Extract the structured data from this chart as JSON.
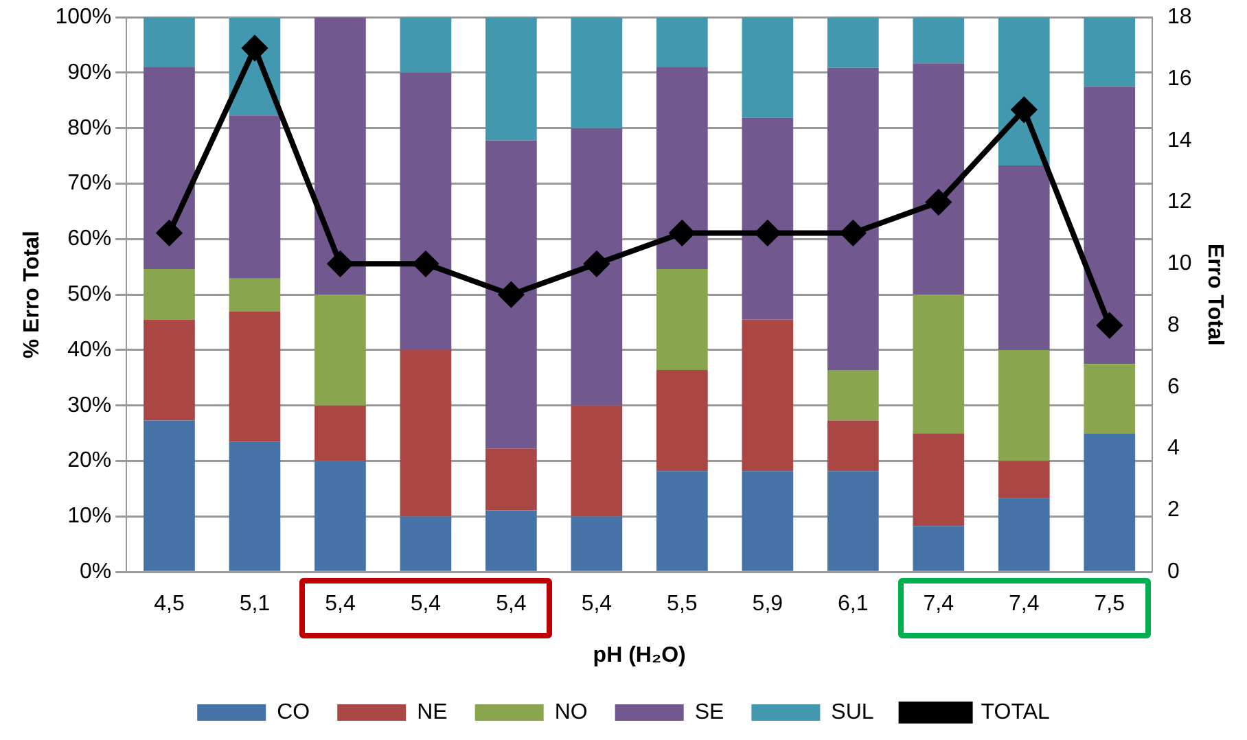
{
  "chart_data": {
    "type": "bar",
    "stacked": true,
    "xlabel": "pH (H₂O)",
    "ylabel": "% Erro Total",
    "y2label": "Erro Total",
    "categories": [
      "4,5",
      "5,1",
      "5,4",
      "5,4",
      "5,4",
      "5,4",
      "5,5",
      "5,9",
      "6,1",
      "7,4",
      "7,4",
      "7,5"
    ],
    "series": [
      {
        "name": "CO",
        "color": "#4572a7",
        "values": [
          27.3,
          23.5,
          20,
          10,
          11.1,
          10,
          18.2,
          18.2,
          18.2,
          8.3,
          13.3,
          25
        ]
      },
      {
        "name": "NE",
        "color": "#aa4643",
        "values": [
          18.2,
          23.5,
          10,
          30,
          11.1,
          20,
          18.2,
          27.3,
          9.1,
          16.7,
          6.7,
          0
        ]
      },
      {
        "name": "NO",
        "color": "#89a54e",
        "values": [
          9.1,
          5.9,
          20,
          0,
          0,
          0,
          18.2,
          0,
          9.1,
          25,
          20,
          12.5
        ]
      },
      {
        "name": "SE",
        "color": "#71588f",
        "values": [
          36.4,
          29.4,
          50,
          50,
          55.6,
          50,
          36.4,
          36.4,
          54.5,
          41.7,
          33.3,
          50
        ]
      },
      {
        "name": "SUL",
        "color": "#4198af",
        "values": [
          9.1,
          17.6,
          0,
          10,
          22.2,
          20,
          9.1,
          18.2,
          9.1,
          8.3,
          26.7,
          12.5
        ]
      },
      {
        "name": "TOTAL",
        "type": "line",
        "axis": "y2",
        "color": "#000000",
        "values": [
          11,
          17,
          10,
          10,
          9,
          10,
          11,
          11,
          11,
          12,
          15,
          8
        ]
      }
    ],
    "ylim": [
      0,
      100
    ],
    "yticks": [
      {
        "value": 0,
        "label": "0%"
      },
      {
        "value": 10,
        "label": "10%"
      },
      {
        "value": 20,
        "label": "20%"
      },
      {
        "value": 30,
        "label": "30%"
      },
      {
        "value": 40,
        "label": "40%"
      },
      {
        "value": 50,
        "label": "50%"
      },
      {
        "value": 60,
        "label": "60%"
      },
      {
        "value": 70,
        "label": "70%"
      },
      {
        "value": 80,
        "label": "80%"
      },
      {
        "value": 90,
        "label": "90%"
      },
      {
        "value": 100,
        "label": "100%"
      }
    ],
    "y2lim": [
      0,
      18
    ],
    "y2ticks": [
      0,
      2,
      4,
      6,
      8,
      10,
      12,
      14,
      16,
      18
    ],
    "grid": "y",
    "legend": "bottom",
    "marker": "diamond",
    "line_style": "solid"
  }
}
